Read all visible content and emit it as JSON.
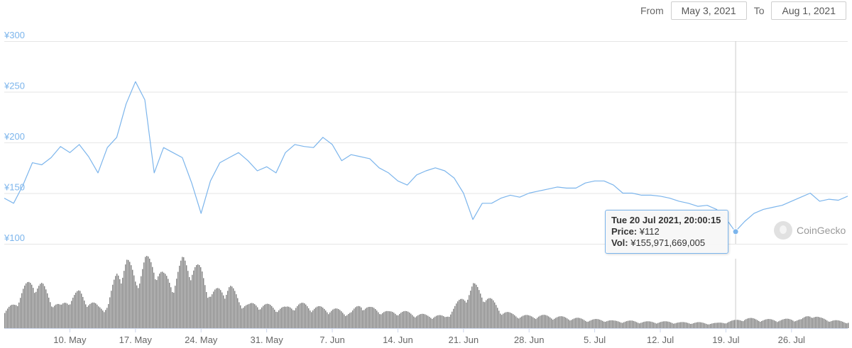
{
  "range_selector": {
    "from_label": "From",
    "from_value": "May 3, 2021",
    "to_label": "To",
    "to_value": "Aug 1, 2021"
  },
  "tooltip": {
    "date": "Tue 20 Jul 2021, 20:00:15",
    "price_label": "Price:",
    "price_value": "¥112",
    "vol_label": "Vol:",
    "vol_value": "¥155,971,669,005"
  },
  "brand": {
    "name": "CoinGecko",
    "icon": "coingecko-logo-icon"
  },
  "colors": {
    "price_line": "#7cb5ec",
    "volume": "#808080",
    "grid": "#e6e6e6",
    "crosshair": "#cccccc"
  },
  "chart_data": {
    "type": "line",
    "x_range": [
      "2021-05-03",
      "2021-08-01"
    ],
    "x_ticks": [
      "10. May",
      "17. May",
      "24. May",
      "31. May",
      "7. Jun",
      "14. Jun",
      "21. Jun",
      "28. Jun",
      "5. Jul",
      "12. Jul",
      "19. Jul",
      "26. Jul"
    ],
    "y_ticks": [
      "¥100",
      "¥150",
      "¥200",
      "¥250",
      "¥300"
    ],
    "ylim": [
      100,
      300
    ],
    "grid": true,
    "price": {
      "x": [
        "2021-05-03",
        "2021-05-04",
        "2021-05-05",
        "2021-05-06",
        "2021-05-07",
        "2021-05-08",
        "2021-05-09",
        "2021-05-10",
        "2021-05-11",
        "2021-05-12",
        "2021-05-13",
        "2021-05-14",
        "2021-05-15",
        "2021-05-16",
        "2021-05-17",
        "2021-05-18",
        "2021-05-19",
        "2021-05-20",
        "2021-05-21",
        "2021-05-22",
        "2021-05-23",
        "2021-05-24",
        "2021-05-25",
        "2021-05-26",
        "2021-05-27",
        "2021-05-28",
        "2021-05-29",
        "2021-05-30",
        "2021-05-31",
        "2021-06-01",
        "2021-06-02",
        "2021-06-03",
        "2021-06-04",
        "2021-06-05",
        "2021-06-06",
        "2021-06-07",
        "2021-06-08",
        "2021-06-09",
        "2021-06-10",
        "2021-06-11",
        "2021-06-12",
        "2021-06-13",
        "2021-06-14",
        "2021-06-15",
        "2021-06-16",
        "2021-06-17",
        "2021-06-18",
        "2021-06-19",
        "2021-06-20",
        "2021-06-21",
        "2021-06-22",
        "2021-06-23",
        "2021-06-24",
        "2021-06-25",
        "2021-06-26",
        "2021-06-27",
        "2021-06-28",
        "2021-06-29",
        "2021-06-30",
        "2021-07-01",
        "2021-07-02",
        "2021-07-03",
        "2021-07-04",
        "2021-07-05",
        "2021-07-06",
        "2021-07-07",
        "2021-07-08",
        "2021-07-09",
        "2021-07-10",
        "2021-07-11",
        "2021-07-12",
        "2021-07-13",
        "2021-07-14",
        "2021-07-15",
        "2021-07-16",
        "2021-07-17",
        "2021-07-18",
        "2021-07-19",
        "2021-07-20",
        "2021-07-21",
        "2021-07-22",
        "2021-07-23",
        "2021-07-24",
        "2021-07-25",
        "2021-07-26",
        "2021-07-27",
        "2021-07-28",
        "2021-07-29",
        "2021-07-30",
        "2021-07-31",
        "2021-08-01"
      ],
      "values": [
        145,
        140,
        158,
        180,
        178,
        185,
        196,
        190,
        198,
        186,
        170,
        195,
        205,
        238,
        260,
        242,
        170,
        195,
        190,
        185,
        160,
        130,
        162,
        180,
        185,
        190,
        182,
        172,
        176,
        170,
        190,
        198,
        196,
        195,
        205,
        198,
        182,
        188,
        186,
        184,
        175,
        170,
        162,
        158,
        168,
        172,
        175,
        172,
        165,
        150,
        124,
        140,
        140,
        145,
        148,
        146,
        150,
        152,
        154,
        156,
        155,
        155,
        160,
        162,
        162,
        158,
        150,
        150,
        148,
        148,
        147,
        145,
        142,
        140,
        137,
        138,
        134,
        125,
        112,
        122,
        130,
        134,
        136,
        138,
        142,
        146,
        150,
        142,
        144,
        143,
        147
      ]
    },
    "volume": {
      "x": [
        "2021-05-03",
        "2021-05-04",
        "2021-05-05",
        "2021-05-06",
        "2021-05-07",
        "2021-05-08",
        "2021-05-09",
        "2021-05-10",
        "2021-05-11",
        "2021-05-12",
        "2021-05-13",
        "2021-05-14",
        "2021-05-15",
        "2021-05-16",
        "2021-05-17",
        "2021-05-18",
        "2021-05-19",
        "2021-05-20",
        "2021-05-21",
        "2021-05-22",
        "2021-05-23",
        "2021-05-24",
        "2021-05-25",
        "2021-05-26",
        "2021-05-27",
        "2021-05-28",
        "2021-05-29",
        "2021-05-30",
        "2021-05-31",
        "2021-06-01",
        "2021-06-02",
        "2021-06-03",
        "2021-06-04",
        "2021-06-05",
        "2021-06-06",
        "2021-06-07",
        "2021-06-08",
        "2021-06-09",
        "2021-06-10",
        "2021-06-11",
        "2021-06-12",
        "2021-06-13",
        "2021-06-14",
        "2021-06-15",
        "2021-06-16",
        "2021-06-17",
        "2021-06-18",
        "2021-06-19",
        "2021-06-20",
        "2021-06-21",
        "2021-06-22",
        "2021-06-23",
        "2021-06-24",
        "2021-06-25",
        "2021-06-26",
        "2021-06-27",
        "2021-06-28",
        "2021-06-29",
        "2021-06-30",
        "2021-07-01",
        "2021-07-02",
        "2021-07-03",
        "2021-07-04",
        "2021-07-05",
        "2021-07-06",
        "2021-07-07",
        "2021-07-08",
        "2021-07-09",
        "2021-07-10",
        "2021-07-11",
        "2021-07-12",
        "2021-07-13",
        "2021-07-14",
        "2021-07-15",
        "2021-07-16",
        "2021-07-17",
        "2021-07-18",
        "2021-07-19",
        "2021-07-20",
        "2021-07-21",
        "2021-07-22",
        "2021-07-23",
        "2021-07-24",
        "2021-07-25",
        "2021-07-26",
        "2021-07-27",
        "2021-07-28",
        "2021-07-29",
        "2021-07-30",
        "2021-07-31",
        "2021-08-01"
      ],
      "values": [
        22,
        35,
        55,
        68,
        60,
        40,
        30,
        45,
        50,
        38,
        30,
        32,
        80,
        95,
        70,
        95,
        92,
        72,
        65,
        95,
        90,
        80,
        48,
        55,
        60,
        40,
        32,
        35,
        32,
        30,
        28,
        34,
        33,
        30,
        28,
        27,
        24,
        22,
        35,
        28,
        26,
        22,
        24,
        22,
        20,
        18,
        18,
        16,
        30,
        45,
        60,
        50,
        38,
        25,
        20,
        18,
        17,
        18,
        17,
        16,
        15,
        14,
        12,
        12,
        12,
        10,
        10,
        10,
        9,
        9,
        9,
        9,
        8,
        8,
        8,
        7,
        7,
        9,
        11,
        14,
        13,
        12,
        12,
        12,
        13,
        12,
        20,
        14,
        12,
        10,
        9
      ]
    }
  }
}
